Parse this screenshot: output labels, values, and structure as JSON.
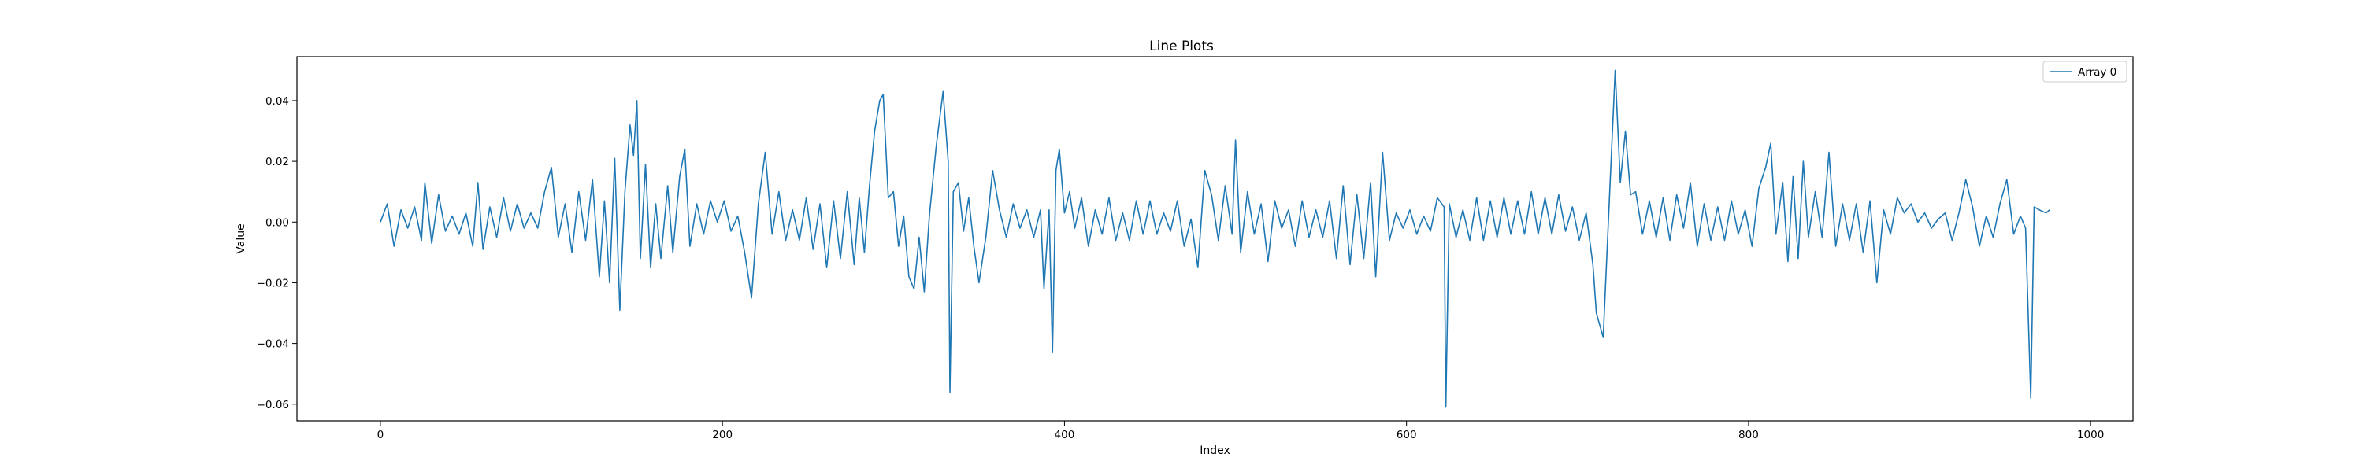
{
  "chart_data": {
    "type": "line",
    "title": "Line Plots",
    "xlabel": "Index",
    "ylabel": "Value",
    "xlim": [
      -48.8,
      1024.8
    ],
    "ylim": [
      -0.0655,
      0.0545
    ],
    "xticks": [
      0,
      200,
      400,
      600,
      800,
      1000
    ],
    "yticks": [
      -0.06,
      -0.04,
      -0.02,
      0.0,
      0.02,
      0.04
    ],
    "xtick_labels": [
      "0",
      "200",
      "400",
      "600",
      "800",
      "1000"
    ],
    "ytick_labels": [
      "−0.06",
      "−0.04",
      "−0.02",
      "0.00",
      "0.02",
      "0.04"
    ],
    "grid": false,
    "legend_position": "top-right",
    "series": [
      {
        "name": "Array 0",
        "color": "#1f77b4",
        "points": [
          [
            0,
            0.0
          ],
          [
            4,
            0.006
          ],
          [
            8,
            -0.008
          ],
          [
            12,
            0.004
          ],
          [
            16,
            -0.002
          ],
          [
            20,
            0.005
          ],
          [
            24,
            -0.006
          ],
          [
            26,
            0.013
          ],
          [
            30,
            -0.007
          ],
          [
            34,
            0.009
          ],
          [
            38,
            -0.003
          ],
          [
            42,
            0.002
          ],
          [
            46,
            -0.004
          ],
          [
            50,
            0.003
          ],
          [
            54,
            -0.008
          ],
          [
            57,
            0.013
          ],
          [
            60,
            -0.009
          ],
          [
            64,
            0.005
          ],
          [
            68,
            -0.005
          ],
          [
            72,
            0.008
          ],
          [
            76,
            -0.003
          ],
          [
            80,
            0.006
          ],
          [
            84,
            -0.002
          ],
          [
            88,
            0.003
          ],
          [
            92,
            -0.002
          ],
          [
            96,
            0.01
          ],
          [
            100,
            0.018
          ],
          [
            104,
            -0.005
          ],
          [
            108,
            0.006
          ],
          [
            112,
            -0.01
          ],
          [
            116,
            0.01
          ],
          [
            120,
            -0.006
          ],
          [
            124,
            0.014
          ],
          [
            128,
            -0.018
          ],
          [
            131,
            0.007
          ],
          [
            134,
            -0.02
          ],
          [
            137,
            0.021
          ],
          [
            140,
            -0.029
          ],
          [
            143,
            0.01
          ],
          [
            146,
            0.032
          ],
          [
            148,
            0.022
          ],
          [
            150,
            0.04
          ],
          [
            152,
            -0.012
          ],
          [
            155,
            0.019
          ],
          [
            158,
            -0.015
          ],
          [
            161,
            0.006
          ],
          [
            164,
            -0.012
          ],
          [
            168,
            0.012
          ],
          [
            171,
            -0.01
          ],
          [
            175,
            0.015
          ],
          [
            178,
            0.024
          ],
          [
            181,
            -0.008
          ],
          [
            185,
            0.006
          ],
          [
            189,
            -0.004
          ],
          [
            193,
            0.007
          ],
          [
            197,
            0.0
          ],
          [
            201,
            0.007
          ],
          [
            205,
            -0.003
          ],
          [
            209,
            0.002
          ],
          [
            213,
            -0.01
          ],
          [
            217,
            -0.025
          ],
          [
            221,
            0.006
          ],
          [
            225,
            0.023
          ],
          [
            229,
            -0.004
          ],
          [
            233,
            0.01
          ],
          [
            237,
            -0.006
          ],
          [
            241,
            0.004
          ],
          [
            245,
            -0.006
          ],
          [
            249,
            0.008
          ],
          [
            253,
            -0.009
          ],
          [
            257,
            0.006
          ],
          [
            261,
            -0.015
          ],
          [
            265,
            0.007
          ],
          [
            269,
            -0.012
          ],
          [
            273,
            0.01
          ],
          [
            277,
            -0.014
          ],
          [
            280,
            0.008
          ],
          [
            283,
            -0.01
          ],
          [
            286,
            0.012
          ],
          [
            289,
            0.03
          ],
          [
            292,
            0.04
          ],
          [
            294,
            0.042
          ],
          [
            297,
            0.008
          ],
          [
            300,
            0.01
          ],
          [
            303,
            -0.008
          ],
          [
            306,
            0.002
          ],
          [
            309,
            -0.018
          ],
          [
            312,
            -0.022
          ],
          [
            315,
            -0.005
          ],
          [
            318,
            -0.023
          ],
          [
            321,
            0.002
          ],
          [
            325,
            0.025
          ],
          [
            329,
            0.043
          ],
          [
            332,
            0.02
          ],
          [
            333,
            -0.056
          ],
          [
            335,
            0.01
          ],
          [
            338,
            0.013
          ],
          [
            341,
            -0.003
          ],
          [
            344,
            0.008
          ],
          [
            347,
            -0.008
          ],
          [
            350,
            -0.02
          ],
          [
            354,
            -0.005
          ],
          [
            358,
            0.017
          ],
          [
            362,
            0.004
          ],
          [
            366,
            -0.005
          ],
          [
            370,
            0.006
          ],
          [
            374,
            -0.002
          ],
          [
            378,
            0.004
          ],
          [
            382,
            -0.005
          ],
          [
            386,
            0.004
          ],
          [
            388,
            -0.022
          ],
          [
            391,
            0.004
          ],
          [
            393,
            -0.043
          ],
          [
            395,
            0.017
          ],
          [
            397,
            0.024
          ],
          [
            400,
            0.003
          ],
          [
            403,
            0.01
          ],
          [
            406,
            -0.002
          ],
          [
            410,
            0.008
          ],
          [
            414,
            -0.008
          ],
          [
            418,
            0.004
          ],
          [
            422,
            -0.004
          ],
          [
            426,
            0.008
          ],
          [
            430,
            -0.006
          ],
          [
            434,
            0.003
          ],
          [
            438,
            -0.006
          ],
          [
            442,
            0.007
          ],
          [
            446,
            -0.004
          ],
          [
            450,
            0.007
          ],
          [
            454,
            -0.004
          ],
          [
            458,
            0.003
          ],
          [
            462,
            -0.003
          ],
          [
            466,
            0.007
          ],
          [
            470,
            -0.008
          ],
          [
            474,
            0.001
          ],
          [
            478,
            -0.015
          ],
          [
            482,
            0.017
          ],
          [
            486,
            0.009
          ],
          [
            490,
            -0.006
          ],
          [
            494,
            0.012
          ],
          [
            498,
            -0.004
          ],
          [
            500,
            0.027
          ],
          [
            503,
            -0.01
          ],
          [
            507,
            0.01
          ],
          [
            511,
            -0.004
          ],
          [
            515,
            0.006
          ],
          [
            519,
            -0.013
          ],
          [
            523,
            0.007
          ],
          [
            527,
            -0.002
          ],
          [
            531,
            0.004
          ],
          [
            535,
            -0.008
          ],
          [
            539,
            0.007
          ],
          [
            543,
            -0.005
          ],
          [
            547,
            0.004
          ],
          [
            551,
            -0.005
          ],
          [
            555,
            0.007
          ],
          [
            559,
            -0.012
          ],
          [
            563,
            0.012
          ],
          [
            567,
            -0.014
          ],
          [
            571,
            0.009
          ],
          [
            575,
            -0.012
          ],
          [
            579,
            0.013
          ],
          [
            582,
            -0.018
          ],
          [
            586,
            0.023
          ],
          [
            590,
            -0.006
          ],
          [
            594,
            0.003
          ],
          [
            598,
            -0.002
          ],
          [
            602,
            0.004
          ],
          [
            606,
            -0.004
          ],
          [
            610,
            0.002
          ],
          [
            614,
            -0.003
          ],
          [
            618,
            0.008
          ],
          [
            622,
            0.005
          ],
          [
            623,
            -0.061
          ],
          [
            625,
            0.006
          ],
          [
            629,
            -0.005
          ],
          [
            633,
            0.004
          ],
          [
            637,
            -0.006
          ],
          [
            641,
            0.008
          ],
          [
            645,
            -0.006
          ],
          [
            649,
            0.007
          ],
          [
            653,
            -0.005
          ],
          [
            657,
            0.008
          ],
          [
            661,
            -0.004
          ],
          [
            665,
            0.007
          ],
          [
            669,
            -0.004
          ],
          [
            673,
            0.01
          ],
          [
            677,
            -0.004
          ],
          [
            681,
            0.008
          ],
          [
            685,
            -0.004
          ],
          [
            689,
            0.009
          ],
          [
            693,
            -0.003
          ],
          [
            697,
            0.005
          ],
          [
            701,
            -0.006
          ],
          [
            705,
            0.003
          ],
          [
            709,
            -0.014
          ],
          [
            711,
            -0.03
          ],
          [
            715,
            -0.038
          ],
          [
            719,
            0.012
          ],
          [
            722,
            0.05
          ],
          [
            725,
            0.013
          ],
          [
            728,
            0.03
          ],
          [
            731,
            0.009
          ],
          [
            734,
            0.01
          ],
          [
            738,
            -0.004
          ],
          [
            742,
            0.007
          ],
          [
            746,
            -0.005
          ],
          [
            750,
            0.008
          ],
          [
            754,
            -0.006
          ],
          [
            758,
            0.009
          ],
          [
            762,
            -0.002
          ],
          [
            766,
            0.013
          ],
          [
            770,
            -0.008
          ],
          [
            774,
            0.006
          ],
          [
            778,
            -0.006
          ],
          [
            782,
            0.005
          ],
          [
            786,
            -0.006
          ],
          [
            790,
            0.007
          ],
          [
            794,
            -0.004
          ],
          [
            798,
            0.004
          ],
          [
            802,
            -0.008
          ],
          [
            806,
            0.011
          ],
          [
            810,
            0.018
          ],
          [
            813,
            0.026
          ],
          [
            816,
            -0.004
          ],
          [
            820,
            0.013
          ],
          [
            823,
            -0.013
          ],
          [
            826,
            0.015
          ],
          [
            829,
            -0.012
          ],
          [
            832,
            0.02
          ],
          [
            835,
            -0.005
          ],
          [
            839,
            0.01
          ],
          [
            843,
            -0.005
          ],
          [
            847,
            0.023
          ],
          [
            851,
            -0.008
          ],
          [
            855,
            0.006
          ],
          [
            859,
            -0.006
          ],
          [
            863,
            0.006
          ],
          [
            867,
            -0.01
          ],
          [
            871,
            0.007
          ],
          [
            875,
            -0.02
          ],
          [
            879,
            0.004
          ],
          [
            883,
            -0.004
          ],
          [
            887,
            0.008
          ],
          [
            891,
            0.003
          ],
          [
            895,
            0.006
          ],
          [
            899,
            0.0
          ],
          [
            903,
            0.003
          ],
          [
            907,
            -0.002
          ],
          [
            911,
            0.001
          ],
          [
            915,
            0.003
          ],
          [
            919,
            -0.006
          ],
          [
            923,
            0.003
          ],
          [
            927,
            0.014
          ],
          [
            931,
            0.005
          ],
          [
            935,
            -0.008
          ],
          [
            939,
            0.002
          ],
          [
            943,
            -0.005
          ],
          [
            947,
            0.006
          ],
          [
            951,
            0.014
          ],
          [
            955,
            -0.004
          ],
          [
            959,
            0.002
          ],
          [
            962,
            -0.002
          ],
          [
            965,
            -0.058
          ],
          [
            967,
            0.005
          ],
          [
            970,
            0.004
          ],
          [
            974,
            0.003
          ],
          [
            976,
            0.004
          ]
        ]
      }
    ]
  }
}
